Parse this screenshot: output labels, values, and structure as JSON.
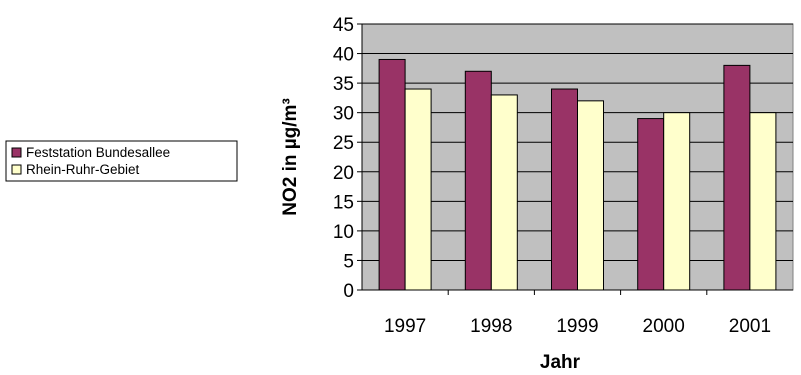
{
  "chart_data": {
    "type": "bar",
    "categories": [
      "1997",
      "1998",
      "1999",
      "2000",
      "2001"
    ],
    "series": [
      {
        "name": "Feststation Bundesallee",
        "values": [
          39,
          37,
          34,
          29,
          38
        ],
        "color": "#993366"
      },
      {
        "name": "Rhein-Ruhr-Gebiet",
        "values": [
          34,
          33,
          32,
          30,
          30
        ],
        "color": "#FFFFCC"
      }
    ],
    "xlabel": "Jahr",
    "ylabel": "NO2 in µg/m³",
    "ylim": [
      0,
      45
    ],
    "yticks": [
      0,
      5,
      10,
      15,
      20,
      25,
      30,
      35,
      40,
      45
    ],
    "grid": true,
    "gridlines_color": "#000000",
    "plot_background": "#C0C0C0",
    "legend_position": "left"
  }
}
